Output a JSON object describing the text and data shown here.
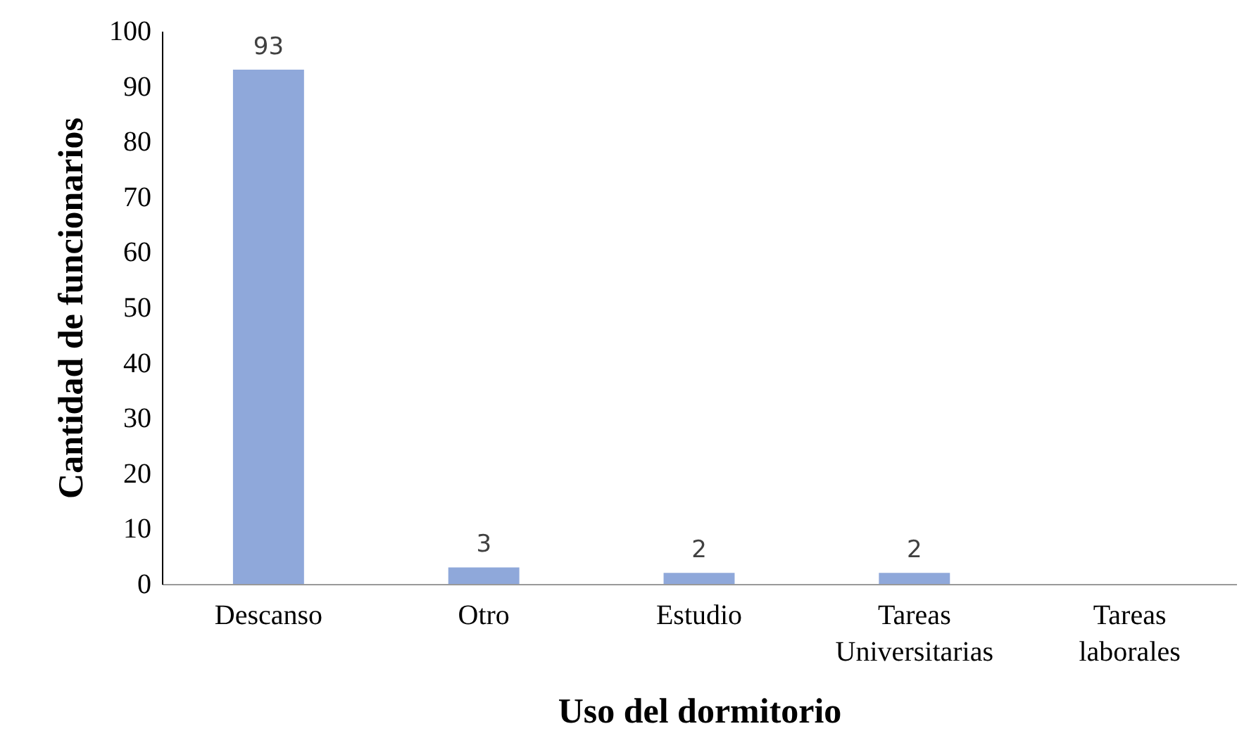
{
  "chart_data": {
    "type": "bar",
    "xlabel": "Uso del dormitorio",
    "ylabel": "Cantidad de funcionarios",
    "categories": [
      "Descanso",
      "Otro",
      "Estudio",
      "Tareas Universitarias",
      "Tareas laborales"
    ],
    "values": [
      93,
      3,
      2,
      2,
      0
    ],
    "value_labels": [
      "93",
      "3",
      "2",
      "2",
      null
    ],
    "color": "#8fa8da",
    "ylim": [
      0,
      100
    ],
    "yticks": [
      0,
      10,
      20,
      30,
      40,
      50,
      60,
      70,
      80,
      90,
      100
    ],
    "grid": false
  }
}
